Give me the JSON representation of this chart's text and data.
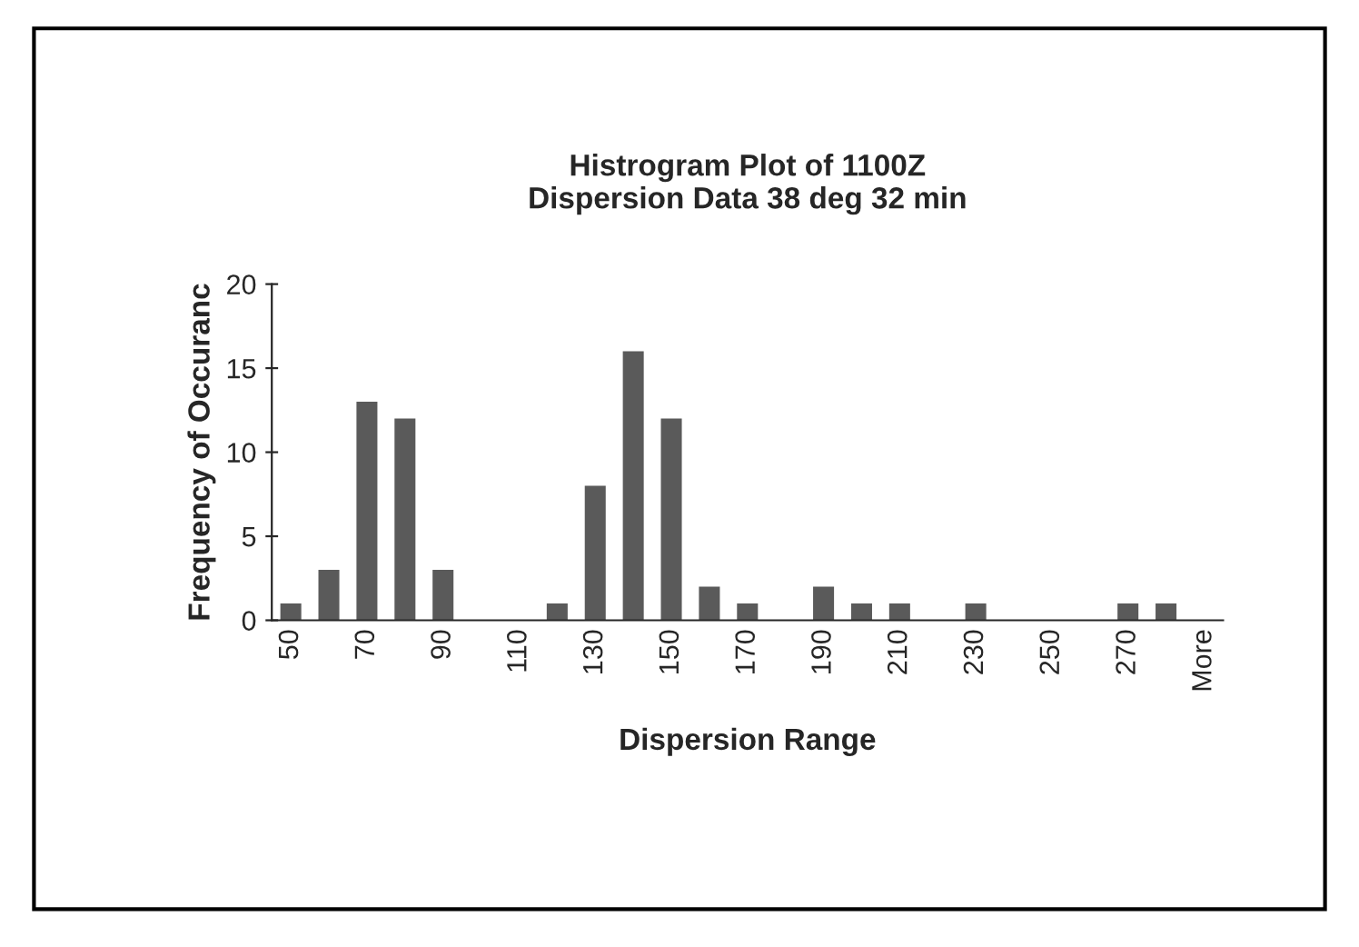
{
  "chart_data": {
    "type": "bar",
    "title": "Histrogram Plot of 1100Z\nDispersion Data 38 deg 32 min",
    "xlabel": "Dispersion Range",
    "ylabel": "Frequency of Occuranc",
    "categories": [
      "50",
      null,
      "70",
      null,
      "90",
      null,
      "110",
      null,
      "130",
      null,
      "150",
      null,
      "170",
      null,
      "190",
      null,
      "210",
      null,
      "230",
      null,
      "250",
      null,
      "270",
      null,
      "More"
    ],
    "values": [
      1,
      3,
      13,
      12,
      3,
      0,
      0,
      1,
      8,
      16,
      12,
      2,
      1,
      0,
      2,
      1,
      1,
      0,
      1,
      0,
      0,
      0,
      1,
      1,
      0
    ],
    "color": "#5a5a5a",
    "ylim": [
      0,
      20
    ],
    "yticks": [
      0,
      5,
      10,
      15,
      20
    ],
    "grid": false,
    "legend": false
  }
}
